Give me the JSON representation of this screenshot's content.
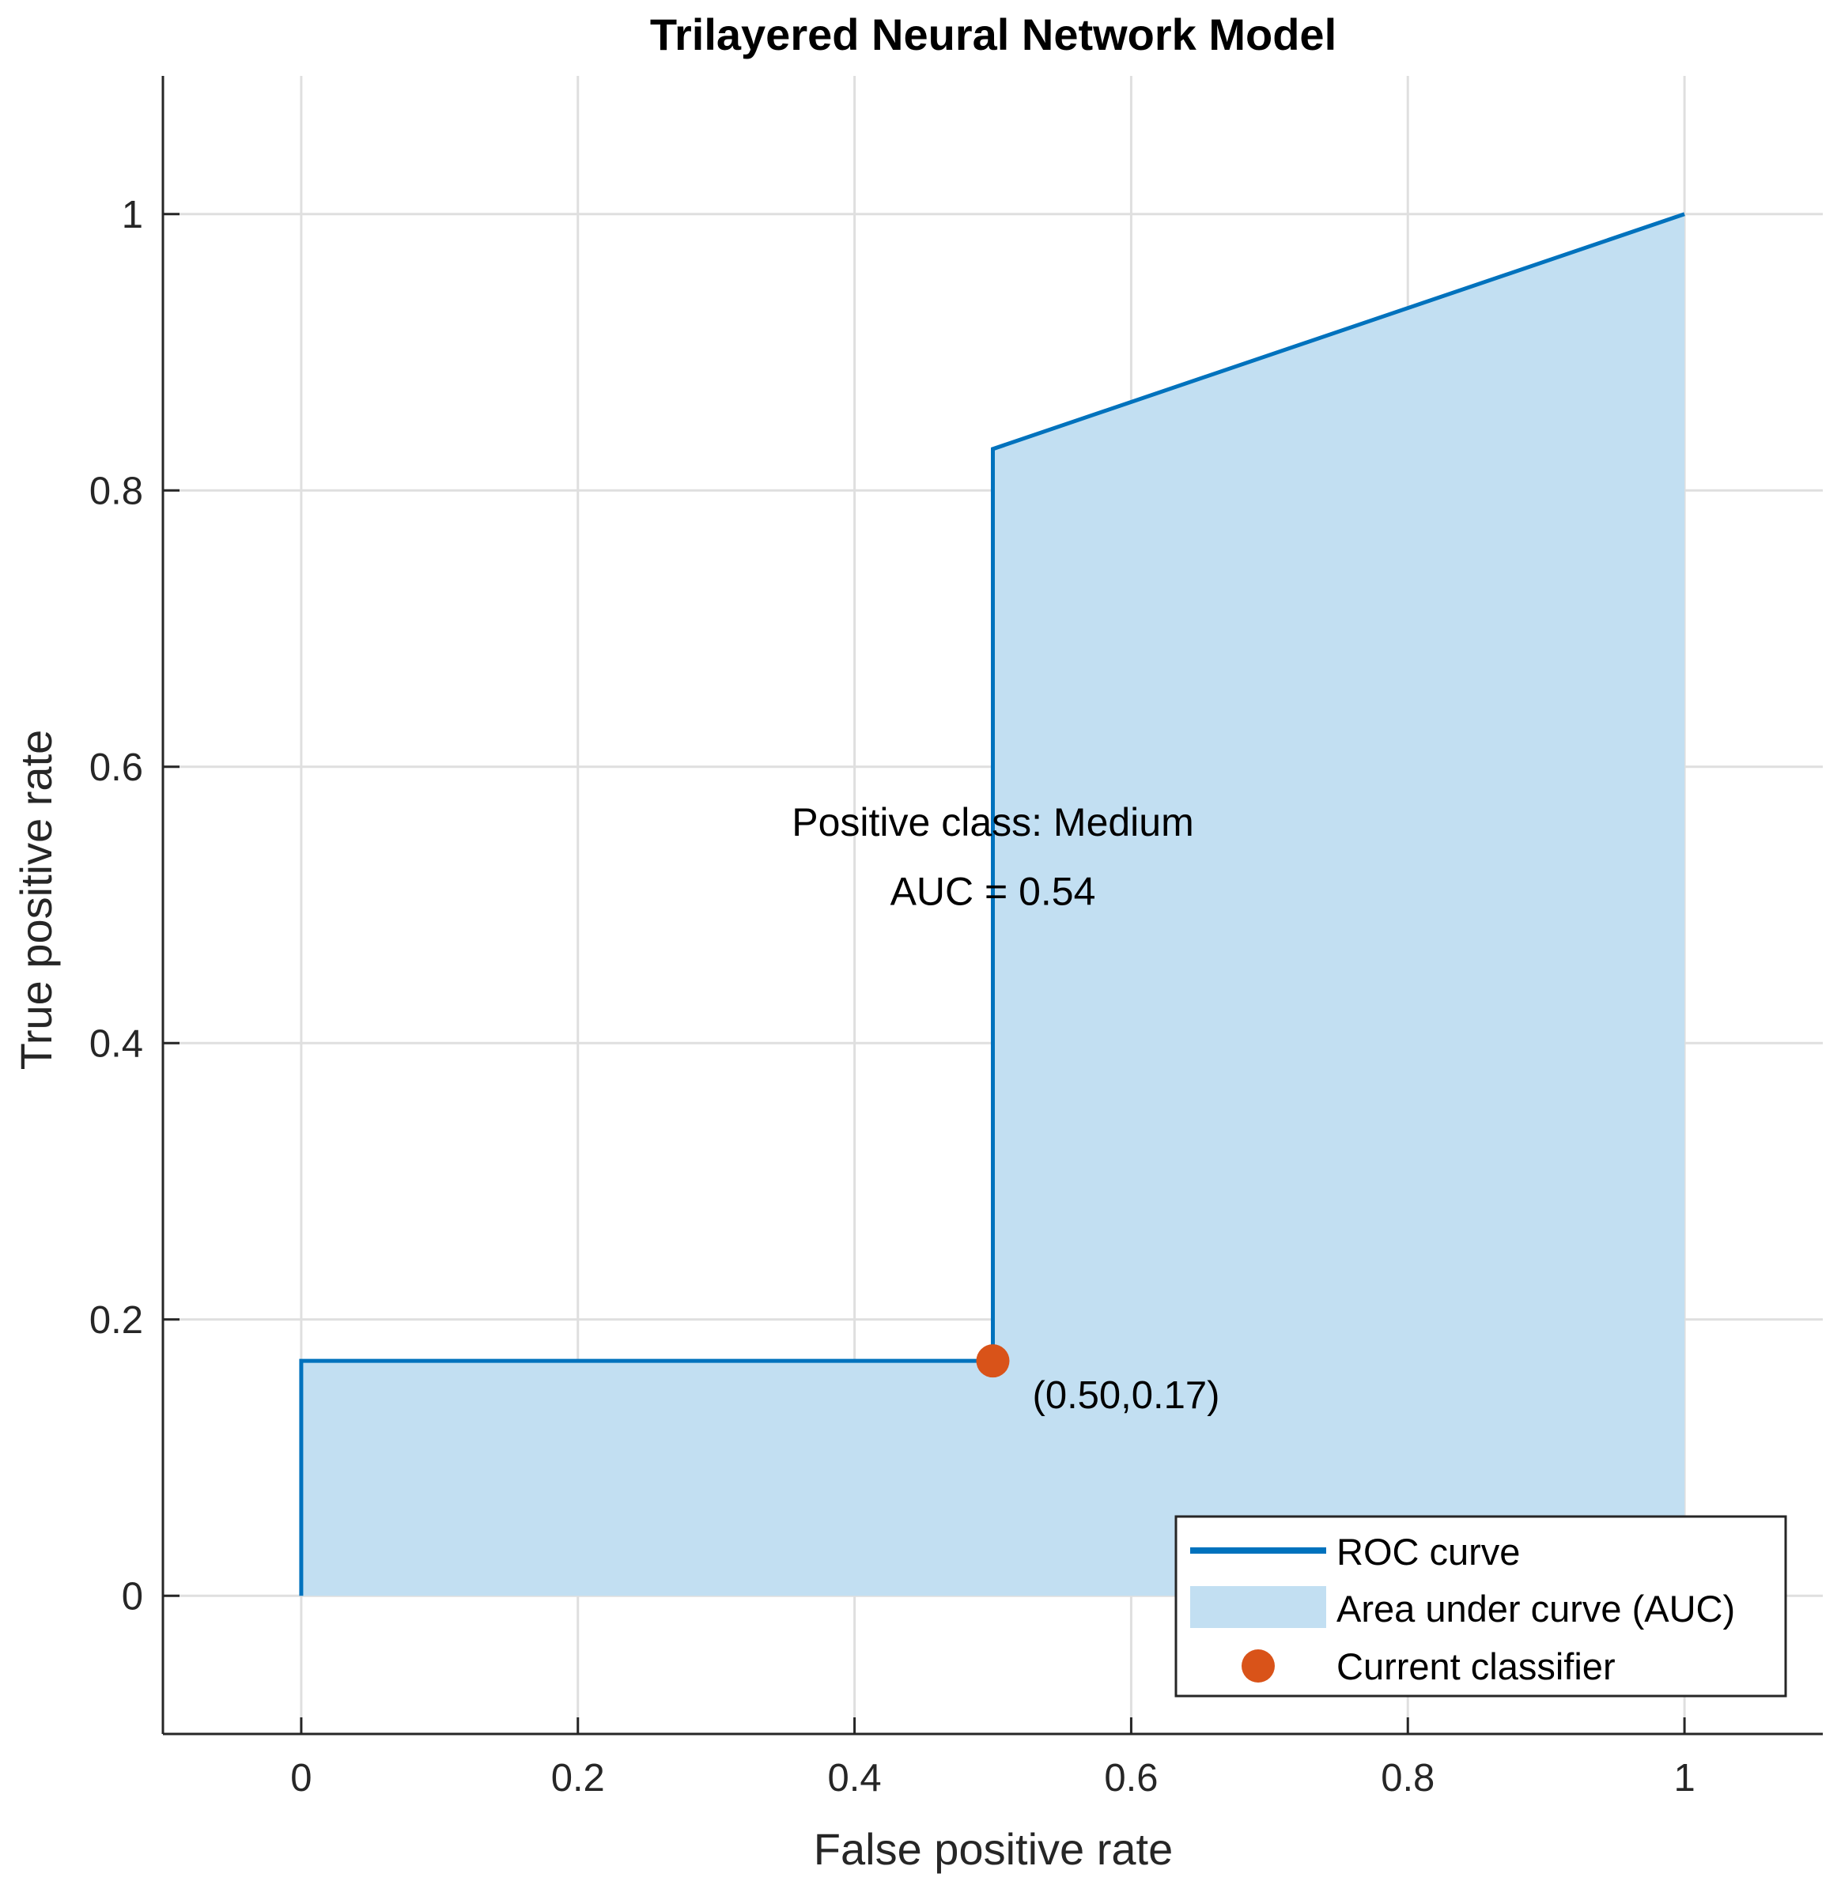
{
  "chart_data": {
    "type": "line",
    "title": "Trilayered Neural Network Model",
    "xlabel": "False positive rate",
    "ylabel": "True positive rate",
    "xlim": [
      -0.1,
      1.1
    ],
    "ylim": [
      -0.1,
      1.1
    ],
    "grid": true,
    "xticks": [
      0,
      0.2,
      0.4,
      0.6,
      0.8,
      1
    ],
    "yticks": [
      0,
      0.2,
      0.4,
      0.6,
      0.8,
      1
    ],
    "xtick_labels": [
      "0",
      "0.2",
      "0.4",
      "0.6",
      "0.8",
      "1"
    ],
    "ytick_labels": [
      "0",
      "0.2",
      "0.4",
      "0.6",
      "0.8",
      "1"
    ],
    "series": [
      {
        "name": "ROC curve",
        "color": "#0072bd",
        "x": [
          0,
          0,
          0.5,
          0.5,
          1
        ],
        "y": [
          0,
          0.17,
          0.17,
          0.83,
          1
        ]
      }
    ],
    "area": {
      "name": "Area under curve (AUC)",
      "color": "#c2dff2"
    },
    "current_point": {
      "name": "Current classifier",
      "color": "#d95319",
      "x": 0.5,
      "y": 0.17,
      "label": "(0.50,0.17)"
    },
    "annotations": [
      {
        "text": "Positive class: Medium",
        "x": 0.5,
        "y": 0.55
      },
      {
        "text": "AUC = 0.54",
        "x": 0.5,
        "y": 0.5
      }
    ],
    "legend": {
      "position": "bottom-right",
      "entries": [
        "ROC curve",
        "Area under curve (AUC)",
        "Current classifier"
      ]
    }
  }
}
